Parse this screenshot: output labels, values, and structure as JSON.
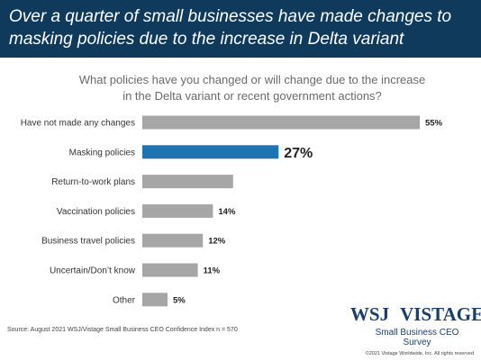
{
  "header": {
    "title_line1": "Over a quarter of small businesses have made changes to",
    "title_line2": "masking policies due to the increase in Delta variant"
  },
  "question": {
    "line1": "What policies have you changed or will change due to the increase",
    "line2": "in the Delta variant or recent government actions?"
  },
  "chart_data": {
    "type": "bar",
    "orientation": "horizontal",
    "categories": [
      "Have not made any changes",
      "Masking policies",
      "Return-to-work plans",
      "Vaccination policies",
      "Business travel policies",
      "Uncertain/Don’t know",
      "Other"
    ],
    "values": [
      55,
      27,
      18,
      14,
      12,
      11,
      5
    ],
    "labels": [
      "55%",
      "27%",
      "",
      "14%",
      "12%",
      "11%",
      "5%"
    ],
    "highlight_index": 1,
    "colors": {
      "default": "#a6a6a6",
      "highlight": "#1e73b0"
    },
    "grid": false
  },
  "footer": {
    "source": "Source: August 2021 WSJ/Vistage Small Business CEO Confidence Index n = 570",
    "logo_wsj": "WSJ",
    "logo_vistage": "VISTAGE",
    "logo_sub": "Small Business CEO Survey",
    "copyright": "©2021 Vistage Worldwide, Inc. All rights reserved"
  }
}
